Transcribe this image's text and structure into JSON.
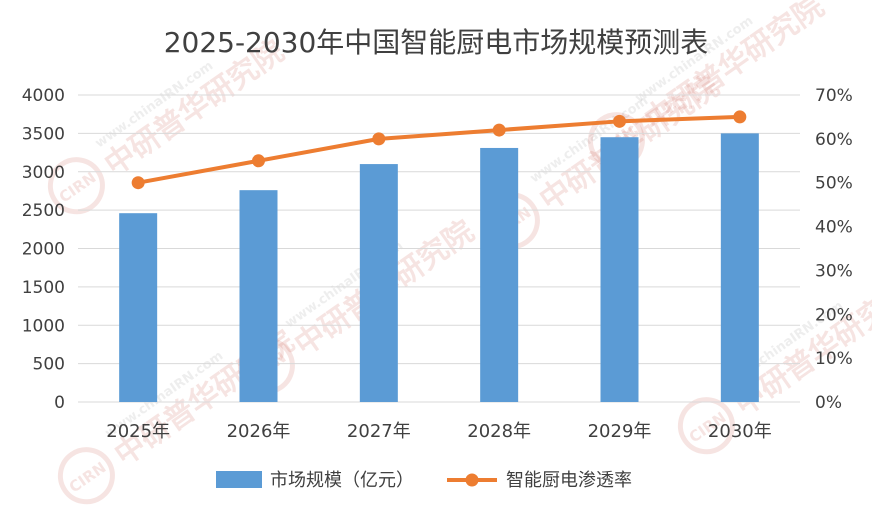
{
  "chart_data": {
    "type": "bar+line",
    "title": "2025-2030年中国智能厨电市场规模预测表",
    "categories": [
      "2025年",
      "2026年",
      "2027年",
      "2028年",
      "2029年",
      "2030年"
    ],
    "series": [
      {
        "name": "市场规模（亿元）",
        "type": "bar",
        "axis": "left",
        "values": [
          2460,
          2760,
          3100,
          3310,
          3450,
          3500
        ]
      },
      {
        "name": "智能厨电渗透率",
        "type": "line",
        "axis": "right",
        "values": [
          0.5,
          0.55,
          0.6,
          0.62,
          0.64,
          0.65
        ]
      }
    ],
    "y_left": {
      "ylim": [
        0,
        4000
      ],
      "ticks": [
        0,
        500,
        1000,
        1500,
        2000,
        2500,
        3000,
        3500,
        4000
      ]
    },
    "y_right": {
      "ylim": [
        0,
        0.7
      ],
      "ticks": [
        "0%",
        "10%",
        "20%",
        "30%",
        "40%",
        "50%",
        "60%",
        "70%"
      ]
    },
    "grid": true,
    "legend_position": "bottom",
    "colors": {
      "bar": "#5B9BD5",
      "line": "#ED7D31",
      "grid": "#D9D9D9",
      "text": "#404040",
      "title": "#404040"
    }
  },
  "watermark": {
    "text": "中研普华研究院",
    "url_text": "www.chinaIRN.com",
    "logo_text": "CIRN"
  }
}
